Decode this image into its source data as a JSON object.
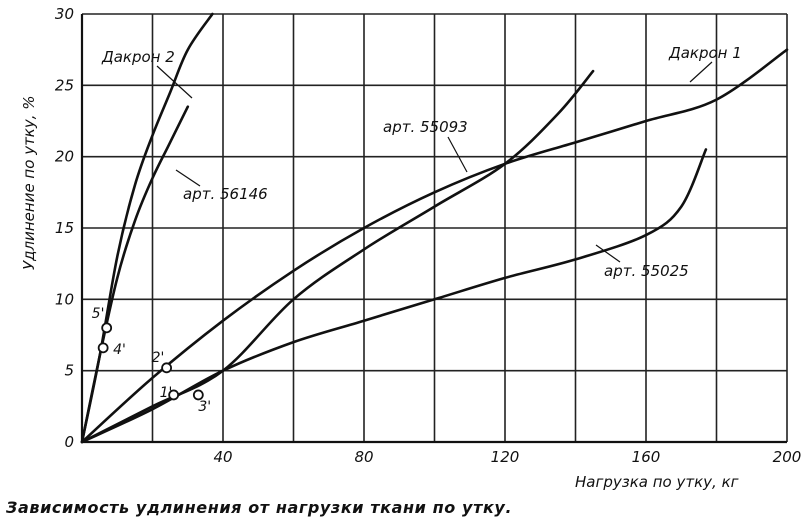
{
  "caption": "Зависимость удлинения от нагрузки ткани по утку.",
  "chart_data": {
    "type": "line",
    "xlabel": "Нагрузка по утку, кг",
    "ylabel": "Удлинение по утку, %",
    "xlim": [
      0,
      200
    ],
    "ylim": [
      0,
      30
    ],
    "x_ticks": [
      {
        "value": 40,
        "label": "40"
      },
      {
        "value": 80,
        "label": "80"
      },
      {
        "value": 120,
        "label": "120"
      },
      {
        "value": 160,
        "label": "160"
      },
      {
        "value": 200,
        "label": "200"
      }
    ],
    "y_ticks": [
      {
        "value": 0,
        "label": "0"
      },
      {
        "value": 5,
        "label": "5"
      },
      {
        "value": 10,
        "label": "10"
      },
      {
        "value": 15,
        "label": "15"
      },
      {
        "value": 20,
        "label": "20"
      },
      {
        "value": 25,
        "label": "25"
      },
      {
        "value": 30,
        "label": "30"
      }
    ],
    "grid": true,
    "series": [
      {
        "name": "Дакрон 2",
        "points": [
          [
            0,
            0
          ],
          [
            5,
            6
          ],
          [
            10,
            13
          ],
          [
            15,
            18
          ],
          [
            20,
            21.5
          ],
          [
            25,
            24.5
          ],
          [
            30,
            27.5
          ],
          [
            37,
            30
          ]
        ]
      },
      {
        "name": "арт. 56146",
        "points": [
          [
            0,
            0
          ],
          [
            5,
            6
          ],
          [
            10,
            11.5
          ],
          [
            15,
            15.5
          ],
          [
            20,
            18.5
          ],
          [
            25,
            21
          ],
          [
            30,
            23.5
          ]
        ]
      },
      {
        "name": "Дакрон 1",
        "points": [
          [
            0,
            0
          ],
          [
            20,
            4.5
          ],
          [
            40,
            8.5
          ],
          [
            60,
            12
          ],
          [
            80,
            15
          ],
          [
            100,
            17.5
          ],
          [
            120,
            19.5
          ],
          [
            140,
            21
          ],
          [
            160,
            22.5
          ],
          [
            180,
            24
          ],
          [
            200,
            27.5
          ]
        ]
      },
      {
        "name": "арт. 55093",
        "points": [
          [
            0,
            0
          ],
          [
            20,
            2.5
          ],
          [
            40,
            5
          ],
          [
            60,
            10
          ],
          [
            80,
            13.5
          ],
          [
            100,
            16.5
          ],
          [
            120,
            19.5
          ],
          [
            135,
            23
          ],
          [
            145,
            26
          ]
        ]
      },
      {
        "name": "арт. 55025",
        "points": [
          [
            0,
            0
          ],
          [
            20,
            2.3
          ],
          [
            40,
            5
          ],
          [
            60,
            7
          ],
          [
            80,
            8.5
          ],
          [
            100,
            10
          ],
          [
            120,
            11.5
          ],
          [
            140,
            12.8
          ],
          [
            160,
            14.5
          ],
          [
            170,
            16.5
          ],
          [
            177,
            20.5
          ]
        ]
      }
    ],
    "markers": [
      {
        "label": "1'",
        "x": 26,
        "y": 3.3
      },
      {
        "label": "2'",
        "x": 24,
        "y": 5.2
      },
      {
        "label": "3'",
        "x": 33,
        "y": 3.3
      },
      {
        "label": "4'",
        "x": 6,
        "y": 6.6
      },
      {
        "label": "5'",
        "x": 7,
        "y": 8
      }
    ]
  }
}
